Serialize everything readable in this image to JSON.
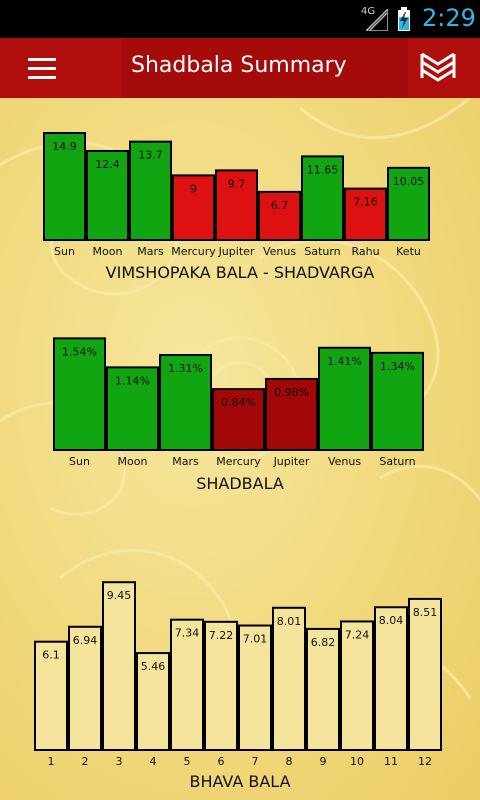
{
  "status_bar": {
    "network": "4G",
    "time": "2:29"
  },
  "app_bar": {
    "title": "Shadbala Summary"
  },
  "chart_data": [
    {
      "type": "bar",
      "title": "VIMSHOPAKA BALA - SHADVARGA",
      "categories": [
        "Sun",
        "Moon",
        "Mars",
        "Mercury",
        "Jupiter",
        "Venus",
        "Saturn",
        "Rahu",
        "Ketu"
      ],
      "values": [
        14.9,
        12.4,
        13.7,
        9,
        9.7,
        6.7,
        11.65,
        7.16,
        10.05
      ],
      "value_labels": [
        "14.9",
        "12.4",
        "13.7",
        "9",
        "9.7",
        "6.7",
        "11.65",
        "7.16",
        "10.05"
      ],
      "bar_colors": [
        "#11a511",
        "#11a511",
        "#11a511",
        "#dd1111",
        "#dd1111",
        "#dd1111",
        "#11a511",
        "#dd1111",
        "#11a511"
      ],
      "ylim": [
        0,
        15.6
      ],
      "grid": false
    },
    {
      "type": "bar",
      "title": "SHADBALA",
      "categories": [
        "Sun",
        "Moon",
        "Mars",
        "Mercury",
        "Jupiter",
        "Venus",
        "Saturn"
      ],
      "values": [
        1.54,
        1.14,
        1.31,
        0.84,
        0.98,
        1.41,
        1.34
      ],
      "value_labels": [
        "1.54%",
        "1.14%",
        "1.31%",
        "0.84%",
        "0.98%",
        "1.41%",
        "1.34%"
      ],
      "bar_colors": [
        "#11a511",
        "#11a511",
        "#11a511",
        "#a30707",
        "#a30707",
        "#11a511",
        "#11a511"
      ],
      "ylim": [
        0,
        1.6
      ],
      "grid": false
    },
    {
      "type": "bar",
      "title": "BHAVA BALA",
      "categories": [
        "1",
        "2",
        "3",
        "4",
        "5",
        "6",
        "7",
        "8",
        "9",
        "10",
        "11",
        "12"
      ],
      "values": [
        6.1,
        6.94,
        9.45,
        5.46,
        7.34,
        7.22,
        7.01,
        8.01,
        6.82,
        7.24,
        8.04,
        8.51
      ],
      "value_labels": [
        "6.1",
        "6.94",
        "9.45",
        "5.46",
        "7.34",
        "7.22",
        "7.01",
        "8.01",
        "6.82",
        "7.24",
        "8.04",
        "8.51"
      ],
      "bar_colors": [
        "#f5e49c",
        "#f5e49c",
        "#f5e49c",
        "#f5e49c",
        "#f5e49c",
        "#f5e49c",
        "#f5e49c",
        "#f5e49c",
        "#f5e49c",
        "#f5e49c",
        "#f5e49c",
        "#f5e49c"
      ],
      "ylim": [
        0,
        9.8
      ],
      "grid": false
    }
  ]
}
